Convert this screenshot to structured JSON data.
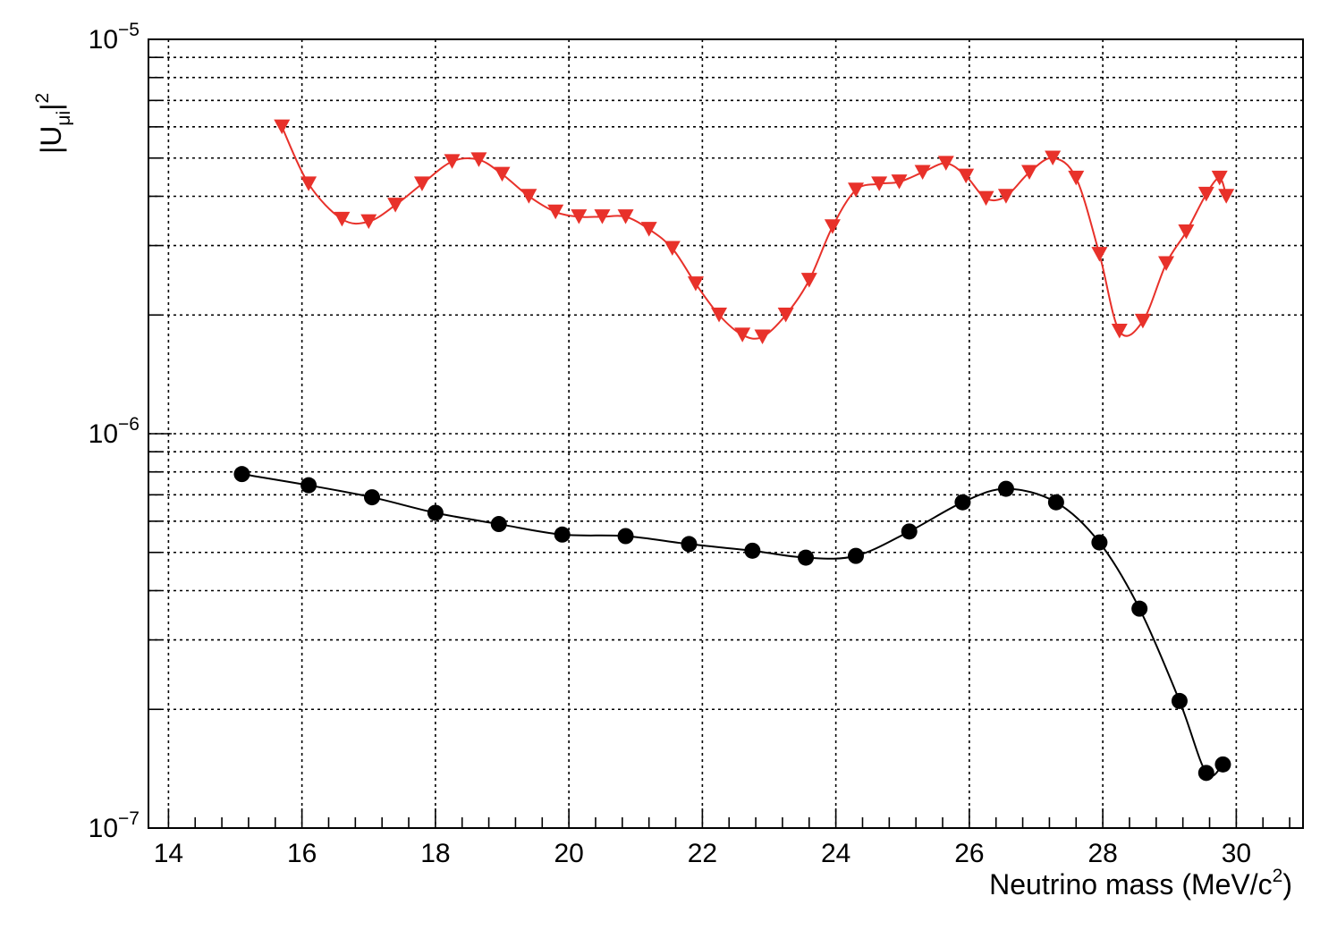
{
  "chart_data": {
    "type": "scatter",
    "title": "",
    "xlabel": "Neutrino mass (MeV/c",
    "xlabel_sup": "2",
    "xlabel_close": ")",
    "ylabel": "|U",
    "ylabel_sub": "μi",
    "ylabel_close": "|",
    "ylabel_sup": "2",
    "xlim": [
      13.7,
      31.0
    ],
    "ylim": [
      1e-07,
      1e-05
    ],
    "y_scale": "log",
    "grid": true,
    "grid_style": "dotted",
    "x_ticks": [
      {
        "value": 14,
        "label": "14"
      },
      {
        "value": 16,
        "label": "16"
      },
      {
        "value": 18,
        "label": "18"
      },
      {
        "value": 20,
        "label": "20"
      },
      {
        "value": 22,
        "label": "22"
      },
      {
        "value": 24,
        "label": "24"
      },
      {
        "value": 26,
        "label": "26"
      },
      {
        "value": 28,
        "label": "28"
      },
      {
        "value": 30,
        "label": "30"
      }
    ],
    "y_ticks": [
      {
        "value": 1e-07,
        "base": "10",
        "exp": "−7"
      },
      {
        "value": 1e-06,
        "base": "10",
        "exp": "−6"
      },
      {
        "value": 1e-05,
        "base": "10",
        "exp": "−5"
      }
    ],
    "series": [
      {
        "marker": "triangle-down",
        "color": "#e8312a",
        "x": [
          15.7,
          16.1,
          16.6,
          17.0,
          17.4,
          17.8,
          18.25,
          18.65,
          19.0,
          19.4,
          19.8,
          20.15,
          20.5,
          20.85,
          21.2,
          21.55,
          21.9,
          22.25,
          22.6,
          22.9,
          23.25,
          23.6,
          23.95,
          24.3,
          24.65,
          24.95,
          25.3,
          25.65,
          25.95,
          26.25,
          26.55,
          26.9,
          27.25,
          27.6,
          27.95,
          28.25,
          28.6,
          28.95,
          29.25,
          29.55,
          29.85,
          29.75
        ],
        "y": [
          6e-06,
          4.3e-06,
          3.5e-06,
          3.45e-06,
          3.8e-06,
          4.3e-06,
          4.9e-06,
          4.95e-06,
          4.55e-06,
          4e-06,
          3.65e-06,
          3.55e-06,
          3.55e-06,
          3.55e-06,
          3.3e-06,
          2.95e-06,
          2.4e-06,
          2e-06,
          1.78e-06,
          1.76e-06,
          2e-06,
          2.45e-06,
          3.35e-06,
          4.15e-06,
          4.3e-06,
          4.35e-06,
          4.6e-06,
          4.85e-06,
          4.5e-06,
          3.95e-06,
          4e-06,
          4.6e-06,
          5e-06,
          4.45e-06,
          2.85e-06,
          1.82e-06,
          1.93e-06,
          2.7e-06,
          3.25e-06,
          4.05e-06,
          4e-06,
          4.45e-06
        ]
      },
      {
        "marker": "circle",
        "color": "#000000",
        "x": [
          15.1,
          16.1,
          17.05,
          18.0,
          18.95,
          19.9,
          20.85,
          21.8,
          22.75,
          23.55,
          24.3,
          25.1,
          25.9,
          26.55,
          27.3,
          27.95,
          28.55,
          29.15,
          29.8,
          29.55
        ],
        "y": [
          7.9e-07,
          7.4e-07,
          6.9e-07,
          6.3e-07,
          5.9e-07,
          5.55e-07,
          5.5e-07,
          5.25e-07,
          5.05e-07,
          4.85e-07,
          4.9e-07,
          5.65e-07,
          6.7e-07,
          7.25e-07,
          6.7e-07,
          5.3e-07,
          3.6e-07,
          2.1e-07,
          1.45e-07,
          1.38e-07
        ]
      }
    ]
  }
}
